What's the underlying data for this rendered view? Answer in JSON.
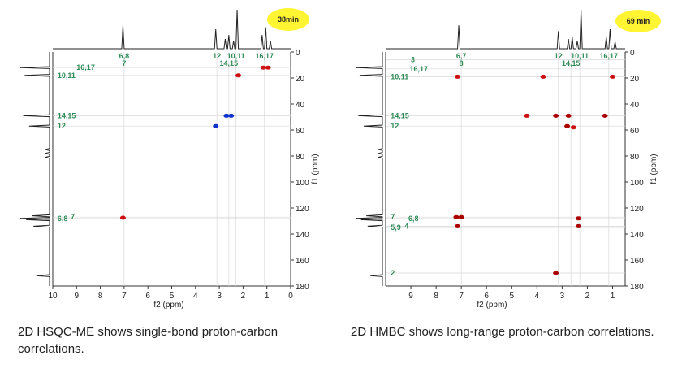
{
  "chart_data": [
    {
      "type": "scatter",
      "subtype": "2D NMR (HSQC-ME)",
      "badge": "38min",
      "xlabel": "f2 (ppm)",
      "ylabel": "f1 (ppm)",
      "xlim": [
        10,
        0
      ],
      "ylim": [
        0,
        180
      ],
      "xticks": [
        "10",
        "9",
        "8",
        "7",
        "6",
        "5",
        "4",
        "3",
        "2",
        "1",
        "0"
      ],
      "yticks": [
        "0",
        "20",
        "40",
        "60",
        "80",
        "100",
        "120",
        "140",
        "160",
        "180"
      ],
      "top_labels": [
        {
          "text": "6,8",
          "x": 7.0,
          "row": 0
        },
        {
          "text": "7",
          "x": 7.0,
          "row": 1
        },
        {
          "text": "12",
          "x": 3.1,
          "row": 0
        },
        {
          "text": "10,11",
          "x": 2.3,
          "row": 0
        },
        {
          "text": "14,15",
          "x": 2.6,
          "row": 1
        },
        {
          "text": "16,17",
          "x": 1.1,
          "row": 0
        }
      ],
      "left_labels": [
        {
          "text": "16,17",
          "x": 9.0,
          "y": 12
        },
        {
          "text": "10,11",
          "x": 9.8,
          "y": 18
        },
        {
          "text": "14,15",
          "x": 9.8,
          "y": 49
        },
        {
          "text": "12",
          "x": 9.8,
          "y": 57
        },
        {
          "text": "6,8",
          "x": 9.8,
          "y": 128
        },
        {
          "text": "7",
          "x": 9.25,
          "y": 127
        }
      ],
      "peaks": [
        {
          "x": 1.15,
          "y": 12,
          "color": "#cc1111"
        },
        {
          "x": 0.95,
          "y": 12,
          "color": "#cc1111"
        },
        {
          "x": 2.2,
          "y": 18,
          "color": "#cc1111"
        },
        {
          "x": 2.7,
          "y": 49,
          "color": "#1133cc"
        },
        {
          "x": 2.5,
          "y": 49,
          "color": "#1133cc"
        },
        {
          "x": 3.15,
          "y": 57,
          "color": "#1133cc"
        },
        {
          "x": 7.05,
          "y": 127.5,
          "color": "#cc1111"
        }
      ],
      "proton_peaks": [
        {
          "x": 7.05,
          "h": 0.6
        },
        {
          "x": 3.15,
          "h": 0.5
        },
        {
          "x": 2.75,
          "h": 0.25
        },
        {
          "x": 2.6,
          "h": 0.35
        },
        {
          "x": 2.4,
          "h": 0.2
        },
        {
          "x": 2.25,
          "h": 1.0
        },
        {
          "x": 1.2,
          "h": 0.35
        },
        {
          "x": 1.05,
          "h": 0.55
        },
        {
          "x": 0.85,
          "h": 0.2
        }
      ],
      "carbon_peaks": [
        {
          "y": 12,
          "w": 1.0
        },
        {
          "y": 18,
          "w": 0.85
        },
        {
          "y": 49,
          "w": 0.9
        },
        {
          "y": 57,
          "w": 0.7
        },
        {
          "y": 75,
          "w": 0.15
        },
        {
          "y": 78,
          "w": 0.15
        },
        {
          "y": 81,
          "w": 0.15
        },
        {
          "y": 126,
          "w": 0.6
        },
        {
          "y": 128,
          "w": 1.0
        },
        {
          "y": 129,
          "w": 0.8
        },
        {
          "y": 134,
          "w": 0.55
        },
        {
          "y": 172,
          "w": 0.45
        }
      ],
      "caption": "2D HSQC-ME  shows single-bond proton-carbon correlations."
    },
    {
      "type": "scatter",
      "subtype": "2D NMR (HMBC)",
      "badge": "69 min",
      "xlabel": "f2 (ppm)",
      "ylabel": "f1 (ppm)",
      "xlim": [
        10,
        0.5
      ],
      "ylim": [
        0,
        180
      ],
      "xticks": [
        "9",
        "8",
        "7",
        "6",
        "5",
        "4",
        "3",
        "2",
        "1"
      ],
      "yticks": [
        "0",
        "20",
        "40",
        "60",
        "80",
        "100",
        "120",
        "140",
        "160",
        "180"
      ],
      "top_labels": [
        {
          "text": "6,7",
          "x": 7.0,
          "row": 0
        },
        {
          "text": "8",
          "x": 7.0,
          "row": 1
        },
        {
          "text": "12",
          "x": 3.15,
          "row": 0
        },
        {
          "text": "10,11",
          "x": 2.3,
          "row": 0
        },
        {
          "text": "14,15",
          "x": 2.65,
          "row": 1
        },
        {
          "text": "16,17",
          "x": 1.15,
          "row": 0
        }
      ],
      "left_labels": [
        {
          "text": "3",
          "x": 9.0,
          "y": 6
        },
        {
          "text": "16,17",
          "x": 9.05,
          "y": 13
        },
        {
          "text": "10,11",
          "x": 9.8,
          "y": 19
        },
        {
          "text": "14,15",
          "x": 9.8,
          "y": 49
        },
        {
          "text": "12",
          "x": 9.8,
          "y": 57
        },
        {
          "text": "7",
          "x": 9.8,
          "y": 127
        },
        {
          "text": "6,8",
          "x": 9.1,
          "y": 128
        },
        {
          "text": "5,9",
          "x": 9.8,
          "y": 135
        },
        {
          "text": "4",
          "x": 9.25,
          "y": 134
        },
        {
          "text": "2",
          "x": 9.8,
          "y": 170
        }
      ],
      "peaks": [
        {
          "x": 7.15,
          "y": 19,
          "color": "#cc1111"
        },
        {
          "x": 3.75,
          "y": 19,
          "color": "#cc1111"
        },
        {
          "x": 1.0,
          "y": 19,
          "color": "#cc1111"
        },
        {
          "x": 4.4,
          "y": 49,
          "color": "#cc1111"
        },
        {
          "x": 3.25,
          "y": 49,
          "color": "#aa0000"
        },
        {
          "x": 2.75,
          "y": 49,
          "color": "#aa0000"
        },
        {
          "x": 1.3,
          "y": 49,
          "color": "#aa0000"
        },
        {
          "x": 2.8,
          "y": 57,
          "color": "#aa0000"
        },
        {
          "x": 2.55,
          "y": 58,
          "color": "#cc1111"
        },
        {
          "x": 7.2,
          "y": 127,
          "color": "#aa0000"
        },
        {
          "x": 7.0,
          "y": 127,
          "color": "#aa0000"
        },
        {
          "x": 2.35,
          "y": 128,
          "color": "#aa0000"
        },
        {
          "x": 7.15,
          "y": 134,
          "color": "#aa0000"
        },
        {
          "x": 2.35,
          "y": 134,
          "color": "#aa0000"
        },
        {
          "x": 3.25,
          "y": 170,
          "color": "#aa0000"
        }
      ],
      "proton_peaks": [
        {
          "x": 7.1,
          "h": 0.6
        },
        {
          "x": 3.15,
          "h": 0.45
        },
        {
          "x": 2.75,
          "h": 0.25
        },
        {
          "x": 2.6,
          "h": 0.3
        },
        {
          "x": 2.4,
          "h": 0.2
        },
        {
          "x": 2.25,
          "h": 1.0
        },
        {
          "x": 1.25,
          "h": 0.3
        },
        {
          "x": 1.1,
          "h": 0.5
        },
        {
          "x": 0.9,
          "h": 0.18
        }
      ],
      "carbon_peaks": [
        {
          "y": 12,
          "w": 1.0
        },
        {
          "y": 18,
          "w": 0.85
        },
        {
          "y": 49,
          "w": 0.9
        },
        {
          "y": 57,
          "w": 0.7
        },
        {
          "y": 75,
          "w": 0.15
        },
        {
          "y": 78,
          "w": 0.15
        },
        {
          "y": 81,
          "w": 0.15
        },
        {
          "y": 126,
          "w": 0.6
        },
        {
          "y": 128,
          "w": 1.0
        },
        {
          "y": 129,
          "w": 0.8
        },
        {
          "y": 134,
          "w": 0.55
        },
        {
          "y": 172,
          "w": 0.45
        }
      ],
      "caption": "2D HMBC shows long-range proton-carbon correlations."
    }
  ]
}
